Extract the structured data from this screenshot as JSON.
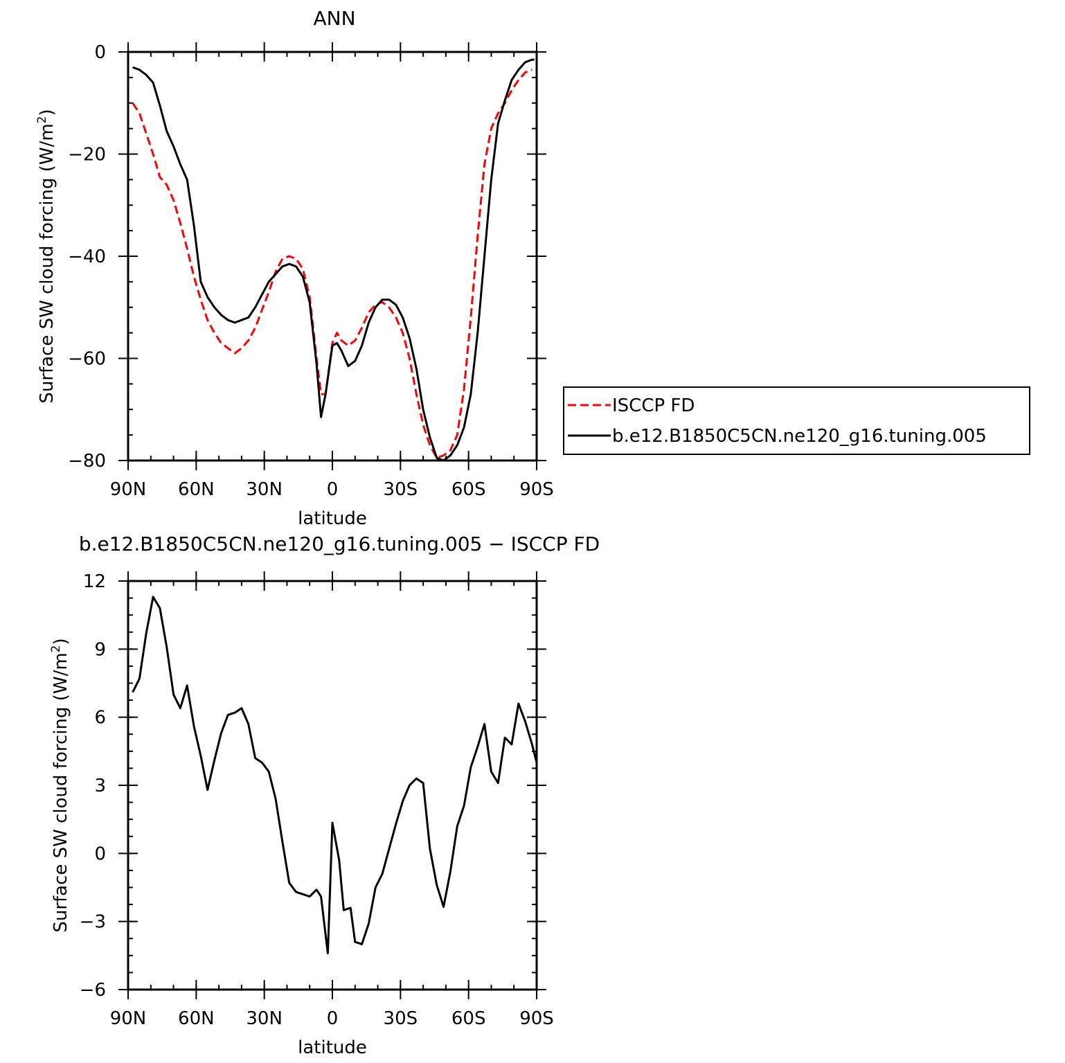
{
  "colors": {
    "model": "#000000",
    "obs": "#ff0000",
    "axis": "#000000",
    "background": "#ffffff"
  },
  "chart_data": [
    {
      "type": "line",
      "title": "ANN",
      "xlabel": "latitude",
      "ylabel": "Surface SW cloud forcing (W/m²)",
      "ylabel_main": "Surface SW cloud forcing (W/m",
      "ylabel_sup": "2",
      "ylabel_close": ")",
      "xlim": [
        90,
        -90
      ],
      "ylim": [
        -80,
        0
      ],
      "xticks": [
        {
          "value": 90,
          "label": "90N"
        },
        {
          "value": 60,
          "label": "60N"
        },
        {
          "value": 30,
          "label": "30N"
        },
        {
          "value": 0,
          "label": "0"
        },
        {
          "value": -30,
          "label": "30S"
        },
        {
          "value": -60,
          "label": "60S"
        },
        {
          "value": -90,
          "label": "90S"
        }
      ],
      "yticks": [
        {
          "value": 0,
          "label": "0"
        },
        {
          "value": -20,
          "label": "−20"
        },
        {
          "value": -40,
          "label": "−40"
        },
        {
          "value": -60,
          "label": "−60"
        },
        {
          "value": -80,
          "label": "−80"
        }
      ],
      "legend_position": "right",
      "series": [
        {
          "name": "ISCCP FD",
          "style": "dashed",
          "color": "#ff0000",
          "points": [
            [
              88,
              -10
            ],
            [
              85,
              -12
            ],
            [
              82,
              -16
            ],
            [
              79,
              -20
            ],
            [
              76,
              -24.5
            ],
            [
              73,
              -26
            ],
            [
              70,
              -29
            ],
            [
              67,
              -33.5
            ],
            [
              64,
              -38.5
            ],
            [
              61,
              -44
            ],
            [
              58,
              -48.5
            ],
            [
              55,
              -52.5
            ],
            [
              52,
              -55
            ],
            [
              49,
              -57
            ],
            [
              46,
              -58
            ],
            [
              43,
              -59
            ],
            [
              40,
              -58
            ],
            [
              37,
              -56.5
            ],
            [
              34,
              -54
            ],
            [
              31,
              -50.5
            ],
            [
              28,
              -47
            ],
            [
              25,
              -43
            ],
            [
              22,
              -40.5
            ],
            [
              19,
              -40
            ],
            [
              16,
              -40.5
            ],
            [
              13,
              -42.5
            ],
            [
              10,
              -48
            ],
            [
              7,
              -60
            ],
            [
              5,
              -67
            ],
            [
              3,
              -67
            ],
            [
              0,
              -57
            ],
            [
              -2,
              -55
            ],
            [
              -4,
              -56.5
            ],
            [
              -7,
              -57.5
            ],
            [
              -10,
              -56.5
            ],
            [
              -13,
              -54
            ],
            [
              -16,
              -51
            ],
            [
              -19,
              -49.5
            ],
            [
              -22,
              -49
            ],
            [
              -25,
              -50
            ],
            [
              -28,
              -52
            ],
            [
              -31,
              -55
            ],
            [
              -34,
              -60
            ],
            [
              -37,
              -67
            ],
            [
              -40,
              -73
            ],
            [
              -43,
              -77
            ],
            [
              -46,
              -79.5
            ],
            [
              -49,
              -79
            ],
            [
              -52,
              -78
            ],
            [
              -55,
              -75
            ],
            [
              -58,
              -66
            ],
            [
              -61,
              -52
            ],
            [
              -64,
              -36
            ],
            [
              -67,
              -22
            ],
            [
              -70,
              -15
            ],
            [
              -73,
              -12
            ],
            [
              -76,
              -10
            ],
            [
              -79,
              -7.5
            ],
            [
              -82,
              -5.5
            ],
            [
              -85,
              -4
            ],
            [
              -88,
              -3.5
            ]
          ]
        },
        {
          "name": "b.e12.B1850C5CN.ne120_g16.tuning.005",
          "style": "solid",
          "color": "#000000",
          "points": [
            [
              88,
              -3
            ],
            [
              85,
              -3.5
            ],
            [
              82,
              -4.5
            ],
            [
              79,
              -6
            ],
            [
              76,
              -10.5
            ],
            [
              73,
              -15.5
            ],
            [
              70,
              -18.5
            ],
            [
              67,
              -22
            ],
            [
              64,
              -25
            ],
            [
              61,
              -34
            ],
            [
              58,
              -45
            ],
            [
              55,
              -48
            ],
            [
              52,
              -50
            ],
            [
              49,
              -51.5
            ],
            [
              46,
              -52.5
            ],
            [
              43,
              -53
            ],
            [
              40,
              -52.5
            ],
            [
              37,
              -52
            ],
            [
              34,
              -50
            ],
            [
              31,
              -47.5
            ],
            [
              28,
              -45
            ],
            [
              25,
              -43.5
            ],
            [
              22,
              -42
            ],
            [
              19,
              -41.5
            ],
            [
              16,
              -42
            ],
            [
              13,
              -44
            ],
            [
              10,
              -49
            ],
            [
              7,
              -61
            ],
            [
              5,
              -71.5
            ],
            [
              3,
              -67
            ],
            [
              0,
              -57.5
            ],
            [
              -2,
              -57
            ],
            [
              -4,
              -58.5
            ],
            [
              -7,
              -61.5
            ],
            [
              -10,
              -60.5
            ],
            [
              -13,
              -57.5
            ],
            [
              -16,
              -53
            ],
            [
              -19,
              -50
            ],
            [
              -22,
              -48.5
            ],
            [
              -25,
              -48.5
            ],
            [
              -28,
              -49.5
            ],
            [
              -31,
              -52
            ],
            [
              -34,
              -56
            ],
            [
              -37,
              -62
            ],
            [
              -40,
              -70
            ],
            [
              -43,
              -75.5
            ],
            [
              -46,
              -79.5
            ],
            [
              -49,
              -80
            ],
            [
              -52,
              -79
            ],
            [
              -55,
              -77
            ],
            [
              -58,
              -73.5
            ],
            [
              -61,
              -67
            ],
            [
              -64,
              -55
            ],
            [
              -67,
              -40
            ],
            [
              -70,
              -25
            ],
            [
              -73,
              -14
            ],
            [
              -76,
              -9.5
            ],
            [
              -79,
              -5.5
            ],
            [
              -82,
              -3.5
            ],
            [
              -85,
              -2
            ],
            [
              -88,
              -1.5
            ],
            [
              -89,
              -1.5
            ]
          ]
        }
      ]
    },
    {
      "type": "line",
      "title": "b.e12.B1850C5CN.ne120_g16.tuning.005 − ISCCP FD",
      "xlabel": "latitude",
      "ylabel": "Surface SW cloud forcing (W/m²)",
      "ylabel_main": "Surface SW cloud forcing (W/m",
      "ylabel_sup": "2",
      "ylabel_close": ")",
      "xlim": [
        90,
        -90
      ],
      "ylim": [
        -6,
        12
      ],
      "xticks": [
        {
          "value": 90,
          "label": "90N"
        },
        {
          "value": 60,
          "label": "60N"
        },
        {
          "value": 30,
          "label": "30N"
        },
        {
          "value": 0,
          "label": "0"
        },
        {
          "value": -30,
          "label": "30S"
        },
        {
          "value": -60,
          "label": "60S"
        },
        {
          "value": -90,
          "label": "90S"
        }
      ],
      "yticks": [
        {
          "value": 12,
          "label": "12"
        },
        {
          "value": 9,
          "label": "9"
        },
        {
          "value": 6,
          "label": "6"
        },
        {
          "value": 3,
          "label": "3"
        },
        {
          "value": 0,
          "label": "0"
        },
        {
          "value": -3,
          "label": "−3"
        },
        {
          "value": -6,
          "label": "−6"
        }
      ],
      "series": [
        {
          "style": "solid",
          "color": "#000000",
          "points": [
            [
              88,
              7.1
            ],
            [
              85,
              7.7
            ],
            [
              82,
              9.7
            ],
            [
              79,
              11.3
            ],
            [
              76,
              10.8
            ],
            [
              73,
              9.1
            ],
            [
              70,
              7.0
            ],
            [
              67,
              6.4
            ],
            [
              64,
              7.4
            ],
            [
              61,
              5.6
            ],
            [
              58,
              4.3
            ],
            [
              55,
              2.8
            ],
            [
              52,
              4.1
            ],
            [
              49,
              5.3
            ],
            [
              46,
              6.1
            ],
            [
              43,
              6.2
            ],
            [
              40,
              6.4
            ],
            [
              37,
              5.7
            ],
            [
              34,
              4.2
            ],
            [
              31,
              4.0
            ],
            [
              28,
              3.6
            ],
            [
              25,
              2.4
            ],
            [
              22,
              0.5
            ],
            [
              19,
              -1.3
            ],
            [
              16,
              -1.7
            ],
            [
              13,
              -1.8
            ],
            [
              10,
              -1.9
            ],
            [
              7,
              -1.6
            ],
            [
              5,
              -1.9
            ],
            [
              2,
              -4.4
            ],
            [
              0,
              1.35
            ],
            [
              -3,
              -0.3
            ],
            [
              -5,
              -2.5
            ],
            [
              -8,
              -2.4
            ],
            [
              -10,
              -3.9
            ],
            [
              -13,
              -4.0
            ],
            [
              -16,
              -3.1
            ],
            [
              -19,
              -1.5
            ],
            [
              -22,
              -0.9
            ],
            [
              -25,
              0.2
            ],
            [
              -28,
              1.3
            ],
            [
              -31,
              2.3
            ],
            [
              -34,
              3.0
            ],
            [
              -37,
              3.3
            ],
            [
              -40,
              3.1
            ],
            [
              -43,
              0.2
            ],
            [
              -46,
              -1.4
            ],
            [
              -49,
              -2.35
            ],
            [
              -52,
              -0.8
            ],
            [
              -55,
              1.2
            ],
            [
              -58,
              2.1
            ],
            [
              -61,
              3.8
            ],
            [
              -64,
              4.7
            ],
            [
              -67,
              5.7
            ],
            [
              -70,
              3.6
            ],
            [
              -73,
              3.1
            ],
            [
              -76,
              5.1
            ],
            [
              -79,
              4.8
            ],
            [
              -82,
              6.6
            ],
            [
              -85,
              5.8
            ],
            [
              -88,
              4.8
            ],
            [
              -91,
              3.6
            ],
            [
              -94,
              2.5
            ],
            [
              -96,
              2.2
            ]
          ]
        }
      ]
    }
  ]
}
